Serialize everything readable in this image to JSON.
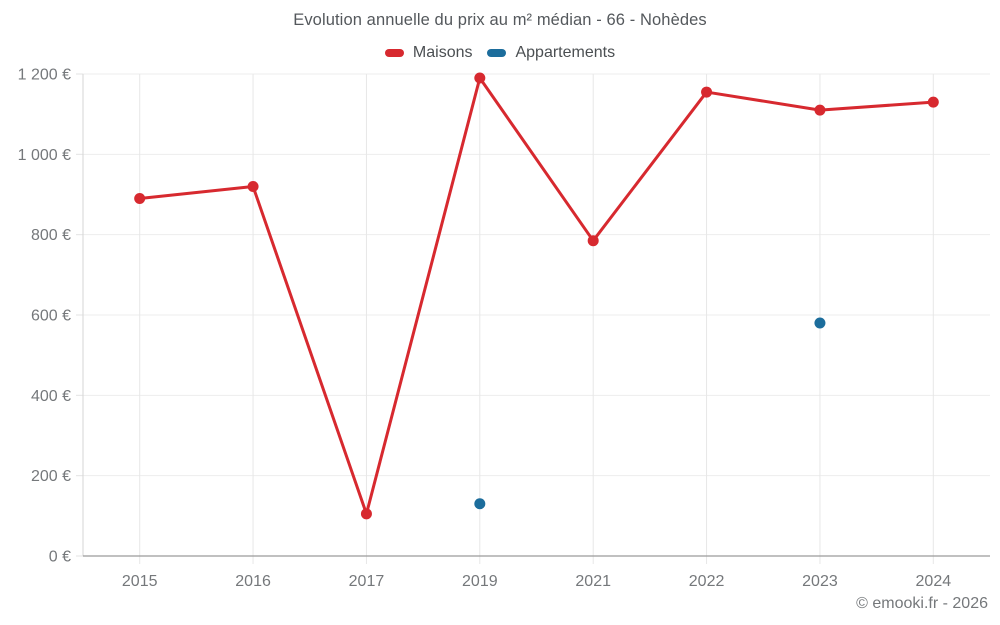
{
  "footer": {
    "text": "© emooki.fr - 2026"
  },
  "chart_data": {
    "type": "line",
    "title": "Evolution annuelle du prix au m² médian - 66 - Nohèdes",
    "categories": [
      "2015",
      "2016",
      "2017",
      "2019",
      "2021",
      "2022",
      "2023",
      "2024"
    ],
    "series": [
      {
        "name": "Maisons",
        "color": "#d7292f",
        "values": [
          890,
          920,
          105,
          1190,
          785,
          1155,
          1110,
          1130
        ]
      },
      {
        "name": "Appartements",
        "color": "#1c6d9c",
        "values": [
          null,
          null,
          null,
          130,
          null,
          null,
          580,
          null
        ]
      }
    ],
    "ylim": [
      0,
      1200
    ],
    "ytick_step": 200,
    "ytick_labels": [
      "0 €",
      "200 €",
      "400 €",
      "600 €",
      "800 €",
      "1 000 €",
      "1 200 €"
    ],
    "xlabel": "",
    "ylabel": "",
    "grid": true,
    "legend_position": "top",
    "colors": {
      "title_text": "#54585c",
      "legend_text": "#4b4f52",
      "axis_text": "#75787b",
      "h_gridline": "#ededed",
      "v_gridline": "#e7e7e7",
      "y_axis_line": "#d6d6d6",
      "x_axis_line": "#9a9a9a",
      "tick": "#e3e3e3"
    }
  }
}
